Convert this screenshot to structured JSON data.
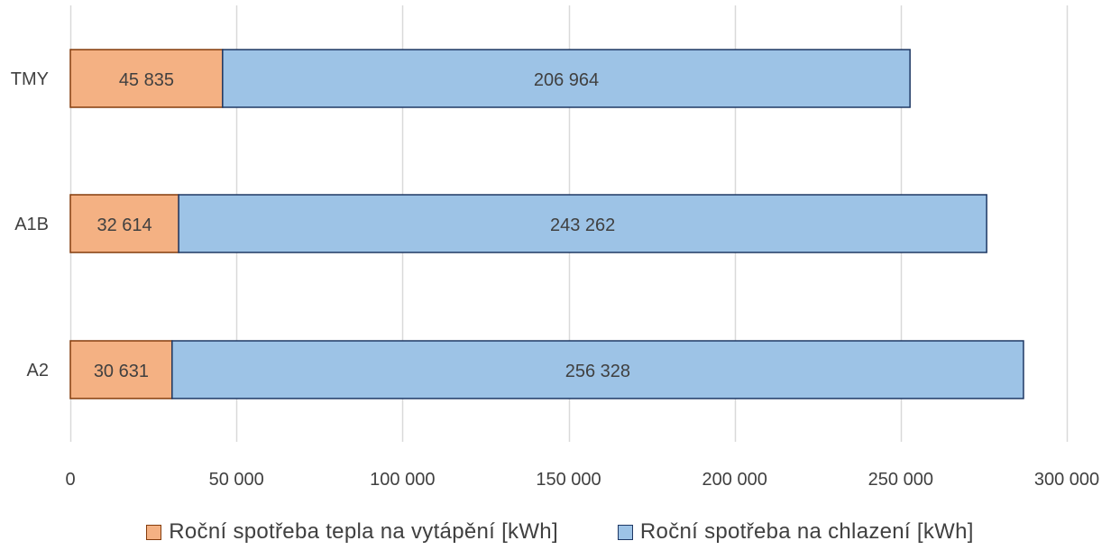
{
  "chart_data": {
    "type": "bar",
    "orientation": "horizontal",
    "stacked": true,
    "categories": [
      "TMY",
      "A1B",
      "A2"
    ],
    "series": [
      {
        "name": "Roční spotřeba tepla na vytápění [kWh]",
        "values": [
          45835,
          32614,
          30631
        ],
        "labels": [
          "45 835",
          "32 614",
          "30 631"
        ],
        "fill": "#f4b183",
        "stroke": "#843c0c"
      },
      {
        "name": "Roční spotřeba na chlazení [kWh]",
        "values": [
          206964,
          243262,
          256328
        ],
        "labels": [
          "206 964",
          "243 262",
          "256 328"
        ],
        "fill": "#9dc3e6",
        "stroke": "#1f3864"
      }
    ],
    "xlim": [
      0,
      300000
    ],
    "xticks": [
      0,
      50000,
      100000,
      150000,
      200000,
      250000,
      300000
    ],
    "xtick_labels": [
      "0",
      "50 000",
      "100 000",
      "150 000",
      "200 000",
      "250 000",
      "300 000"
    ],
    "grid": true,
    "legend_position": "bottom"
  }
}
